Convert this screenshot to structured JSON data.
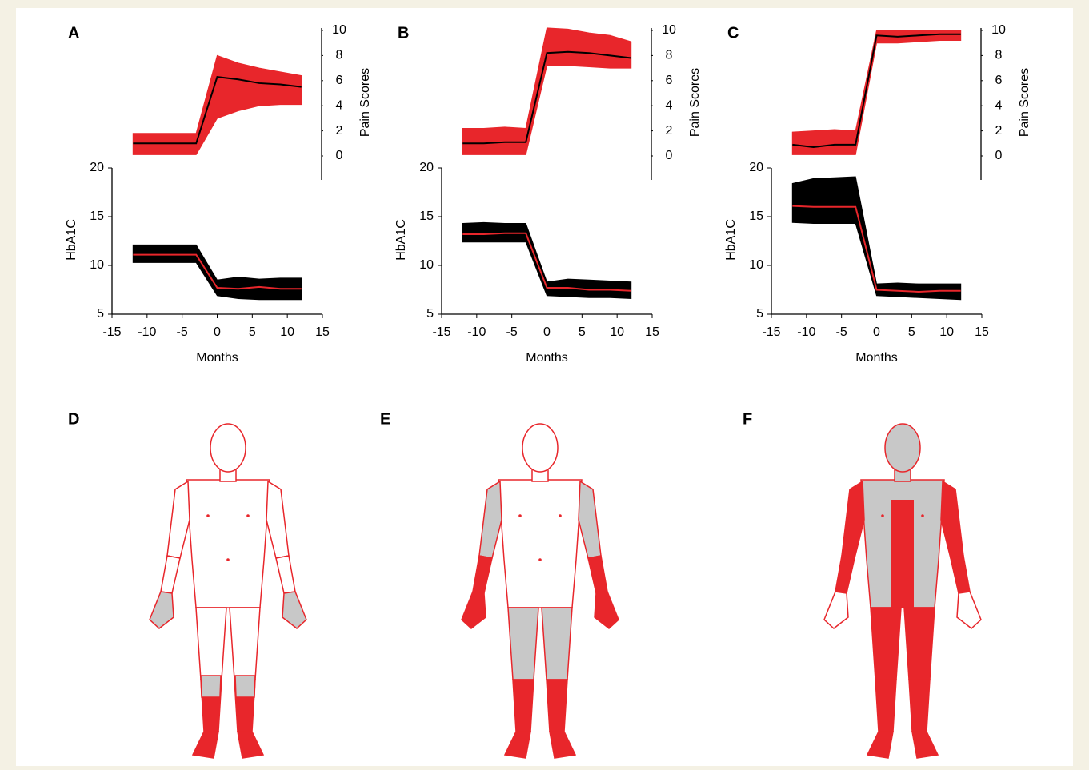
{
  "chart_data": [
    {
      "type": "line",
      "panel": "A",
      "xlabel": "Months",
      "ylabel": "HbA1C",
      "y2label": "Pain Scores",
      "x": [
        -12,
        -9,
        -6,
        -3,
        0,
        3,
        6,
        9,
        12
      ],
      "xlim": [
        -15,
        15
      ],
      "xticks": [
        -15,
        -10,
        -5,
        0,
        5,
        10,
        15
      ],
      "ylim": [
        5,
        20
      ],
      "yticks": [
        5,
        10,
        15,
        20
      ],
      "y2lim": [
        0,
        10
      ],
      "y2ticks": [
        0,
        2,
        4,
        6,
        8,
        10
      ],
      "series": [
        {
          "axis": "y2",
          "color": "#000000",
          "band_color": "#e8262b",
          "values": [
            1.0,
            1.0,
            1.0,
            1.0,
            6.3,
            6.1,
            5.8,
            5.7,
            5.5
          ],
          "lower": [
            0.1,
            0.1,
            0.1,
            0.1,
            3.0,
            3.6,
            4.0,
            4.1,
            4.1
          ],
          "upper": [
            1.8,
            1.8,
            1.8,
            1.8,
            8.0,
            7.4,
            7.0,
            6.7,
            6.4
          ]
        },
        {
          "axis": "y",
          "color": "#e8262b",
          "band_color": "#000000",
          "values": [
            11.1,
            11.1,
            11.1,
            11.1,
            7.7,
            7.6,
            7.8,
            7.6,
            7.6
          ],
          "lower": [
            10.3,
            10.3,
            10.3,
            10.3,
            6.9,
            6.6,
            6.5,
            6.5,
            6.5
          ],
          "upper": [
            12.1,
            12.1,
            12.1,
            12.1,
            8.5,
            8.8,
            8.6,
            8.7,
            8.7
          ]
        }
      ]
    },
    {
      "type": "line",
      "panel": "B",
      "xlabel": "Months",
      "ylabel": "HbA1C",
      "y2label": "Pain Scores",
      "x": [
        -12,
        -9,
        -6,
        -3,
        0,
        3,
        6,
        9,
        12
      ],
      "xlim": [
        -15,
        15
      ],
      "xticks": [
        -15,
        -10,
        -5,
        0,
        5,
        10,
        15
      ],
      "ylim": [
        5,
        20
      ],
      "yticks": [
        5,
        10,
        15,
        20
      ],
      "y2lim": [
        0,
        10
      ],
      "y2ticks": [
        0,
        2,
        4,
        6,
        8,
        10
      ],
      "series": [
        {
          "axis": "y2",
          "color": "#000000",
          "band_color": "#e8262b",
          "values": [
            1.0,
            1.0,
            1.1,
            1.1,
            8.2,
            8.3,
            8.2,
            8.0,
            7.8
          ],
          "lower": [
            0.1,
            0.1,
            0.1,
            0.1,
            7.2,
            7.2,
            7.1,
            7.0,
            7.0
          ],
          "upper": [
            2.2,
            2.2,
            2.3,
            2.2,
            10.2,
            10.1,
            9.8,
            9.6,
            9.1
          ]
        },
        {
          "axis": "y",
          "color": "#e8262b",
          "band_color": "#000000",
          "values": [
            13.2,
            13.2,
            13.3,
            13.3,
            7.7,
            7.7,
            7.5,
            7.5,
            7.4
          ],
          "lower": [
            12.4,
            12.4,
            12.4,
            12.4,
            6.9,
            6.8,
            6.7,
            6.7,
            6.6
          ],
          "upper": [
            14.3,
            14.4,
            14.3,
            14.3,
            8.3,
            8.6,
            8.5,
            8.4,
            8.3
          ]
        }
      ]
    },
    {
      "type": "line",
      "panel": "C",
      "xlabel": "Months",
      "ylabel": "HbA1C",
      "y2label": "Pain Scores",
      "x": [
        -12,
        -9,
        -6,
        -3,
        0,
        3,
        6,
        9,
        12
      ],
      "xlim": [
        -15,
        15
      ],
      "xticks": [
        -15,
        -10,
        -5,
        0,
        5,
        10,
        15
      ],
      "ylim": [
        5,
        20
      ],
      "yticks": [
        5,
        10,
        15,
        20
      ],
      "y2lim": [
        0,
        10
      ],
      "y2ticks": [
        0,
        2,
        4,
        6,
        8,
        10
      ],
      "series": [
        {
          "axis": "y2",
          "color": "#000000",
          "band_color": "#e8262b",
          "values": [
            0.9,
            0.7,
            0.9,
            0.9,
            9.6,
            9.5,
            9.6,
            9.7,
            9.7
          ],
          "lower": [
            0.1,
            0.1,
            0.1,
            0.1,
            9.0,
            9.0,
            9.1,
            9.2,
            9.2
          ],
          "upper": [
            1.9,
            2.0,
            2.1,
            2.0,
            10.0,
            10.0,
            10.0,
            10.0,
            10.0
          ]
        },
        {
          "axis": "y",
          "color": "#e8262b",
          "band_color": "#000000",
          "values": [
            16.1,
            16.0,
            16.0,
            16.0,
            7.5,
            7.4,
            7.3,
            7.4,
            7.4
          ],
          "lower": [
            14.4,
            14.3,
            14.3,
            14.3,
            6.9,
            6.8,
            6.7,
            6.6,
            6.5
          ],
          "upper": [
            18.4,
            18.9,
            19.0,
            19.1,
            8.1,
            8.2,
            8.1,
            8.1,
            8.1
          ]
        }
      ]
    }
  ],
  "body_maps": {
    "panels": [
      "D",
      "E",
      "F"
    ]
  }
}
